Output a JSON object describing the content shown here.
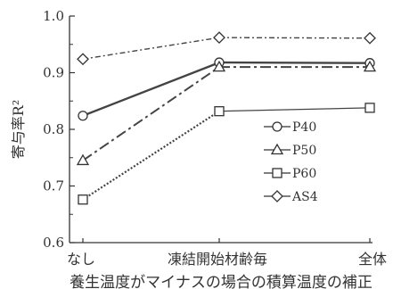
{
  "chart_data": {
    "type": "line",
    "categories": [
      "なし",
      "凍結開始材齢毎",
      "全体"
    ],
    "series": [
      {
        "name": "P40",
        "values": [
          0.824,
          0.918,
          0.917
        ],
        "marker": "circle",
        "line": "solid-thick",
        "color": "#444444"
      },
      {
        "name": "P50",
        "values": [
          0.745,
          0.91,
          0.91
        ],
        "marker": "triangle",
        "line": "dashdot",
        "color": "#444444"
      },
      {
        "name": "P60",
        "values": [
          0.676,
          0.832,
          0.838
        ],
        "marker": "square",
        "line": "dotted-then-solid",
        "color": "#444444"
      },
      {
        "name": "AS4",
        "values": [
          0.924,
          0.962,
          0.961
        ],
        "marker": "diamond",
        "line": "dashed",
        "color": "#444444"
      }
    ],
    "xlabel": "養生温度がマイナスの場合の積算温度の補正",
    "ylabel": "寄与率R²",
    "ylim": [
      0.6,
      1.0
    ],
    "yticks": [
      "0.6",
      "0.7",
      "0.8",
      "0.9",
      "1.0"
    ],
    "grid": false,
    "legend": "right"
  }
}
